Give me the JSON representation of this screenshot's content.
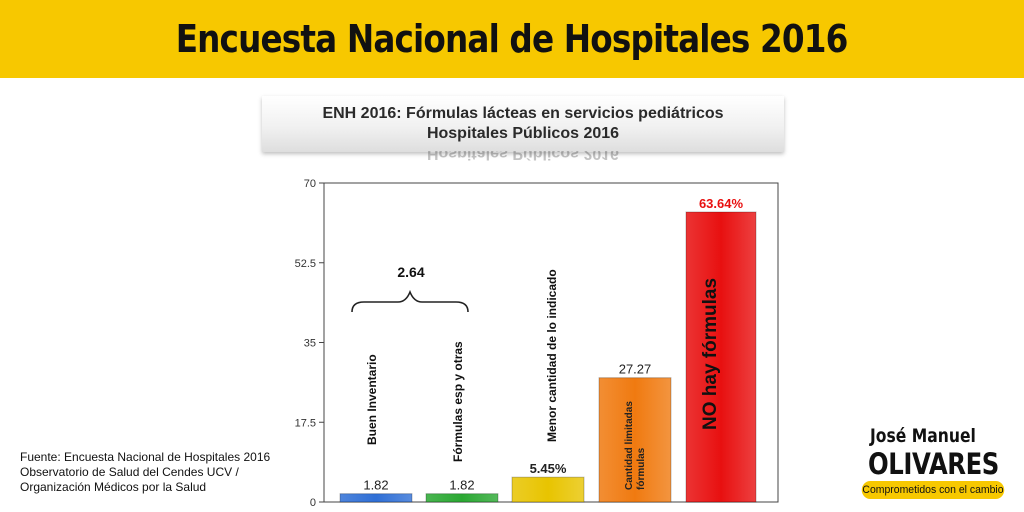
{
  "banner": {
    "title": "Encuesta Nacional de Hospitales 2016"
  },
  "chart_data": {
    "type": "bar",
    "title_line1": "ENH 2016:  Fórmulas lácteas en servicios pediátricos",
    "title_line2": "Hospitales Públicos 2016",
    "ylim": [
      0,
      70
    ],
    "yticks": [
      "0",
      "17.5",
      "35",
      "52.5",
      "70"
    ],
    "bars": [
      {
        "category": "Buen Inventario",
        "value": 1.82,
        "label": "1.82",
        "color": "#2f6fd6"
      },
      {
        "category": "Fórmulas esp y otras",
        "value": 1.82,
        "label": "1.82",
        "color": "#2aa832"
      },
      {
        "category": "Menor cantidad de lo indicado",
        "value": 5.45,
        "label": "5.45%",
        "color": "#e8c400"
      },
      {
        "category": "Cantidad limitadas fórmulas",
        "value": 27.27,
        "label": "27.27",
        "color": "#f07a10"
      },
      {
        "category": "NO hay fórmulas",
        "value": 63.64,
        "label": "63.64%",
        "color": "#e81010"
      }
    ],
    "brace_annotation": "2.64",
    "grid": false
  },
  "source": {
    "line1": "Fuente: Encuesta Nacional de Hospitales 2016",
    "line2": "Observatorio de Salud del Cendes UCV /",
    "line3": "Organización Médicos por la Salud"
  },
  "logo": {
    "first_name": "José Manuel",
    "last_name": "OLIVARES",
    "tagline": "Comprometidos con el cambio"
  }
}
